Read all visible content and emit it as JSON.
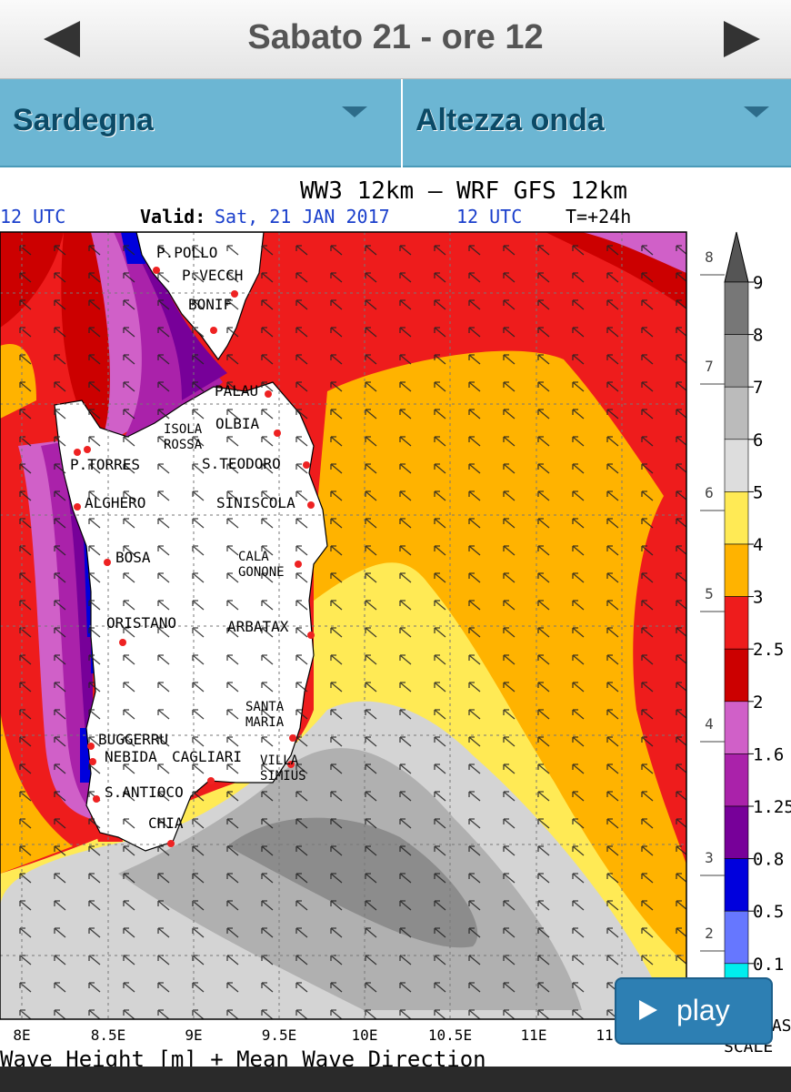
{
  "header": {
    "title": "Sabato 21 - ore 12"
  },
  "selectors": [
    "Sardegna",
    "Altezza onda"
  ],
  "map": {
    "title": "WW3 12km – WRF GFS 12km",
    "run_label": "12 UTC",
    "valid_label": "Valid:",
    "valid_date": "Sat, 21 JAN 2017",
    "valid_time": "12 UTC",
    "forecast": "T=+24h",
    "places": [
      {
        "lines": [
          "P.POLLO"
        ]
      },
      {
        "lines": [
          "P.VECCH"
        ]
      },
      {
        "lines": [
          "BONIF"
        ]
      },
      {
        "lines": [
          "PALAU"
        ]
      },
      {
        "lines": [
          "ISOLA",
          "ROSSA"
        ]
      },
      {
        "lines": [
          "OLBIA"
        ]
      },
      {
        "lines": [
          "P.TORRES"
        ]
      },
      {
        "lines": [
          "S.TEODORO"
        ]
      },
      {
        "lines": [
          "ALGHERO"
        ]
      },
      {
        "lines": [
          "SINISCOLA"
        ]
      },
      {
        "lines": [
          "BOSA"
        ]
      },
      {
        "lines": [
          "CALA",
          "GONONE"
        ]
      },
      {
        "lines": [
          "ORISTANO"
        ]
      },
      {
        "lines": [
          "ARBATAX"
        ]
      },
      {
        "lines": [
          "SANTA",
          "MARIA"
        ]
      },
      {
        "lines": [
          "BUGGERRU"
        ]
      },
      {
        "lines": [
          "NEBIDA"
        ]
      },
      {
        "lines": [
          "CAGLIARI"
        ]
      },
      {
        "lines": [
          "VILLA",
          "SIMIUS"
        ]
      },
      {
        "lines": [
          "S.ANTIOCO"
        ]
      },
      {
        "lines": [
          "CHIA"
        ]
      }
    ],
    "x_labels": [
      "8E",
      "8.5E",
      "9E",
      "9.5E",
      "10E",
      "10.5E",
      "11E",
      "11"
    ],
    "scale_labels": [
      "9",
      "8",
      "7",
      "6",
      "5",
      "4",
      "3",
      "2.5",
      "2",
      "1.6",
      "1.25",
      "0.8",
      "0.5",
      "0.1"
    ],
    "left_scale_labels": [
      "8",
      "7",
      "6",
      "5",
      "4",
      "3",
      "2"
    ],
    "caption": "Wave Height [m] + Mean Wave Direction",
    "scale_caption": [
      "LAS",
      "SCALE"
    ]
  },
  "play": "play"
}
